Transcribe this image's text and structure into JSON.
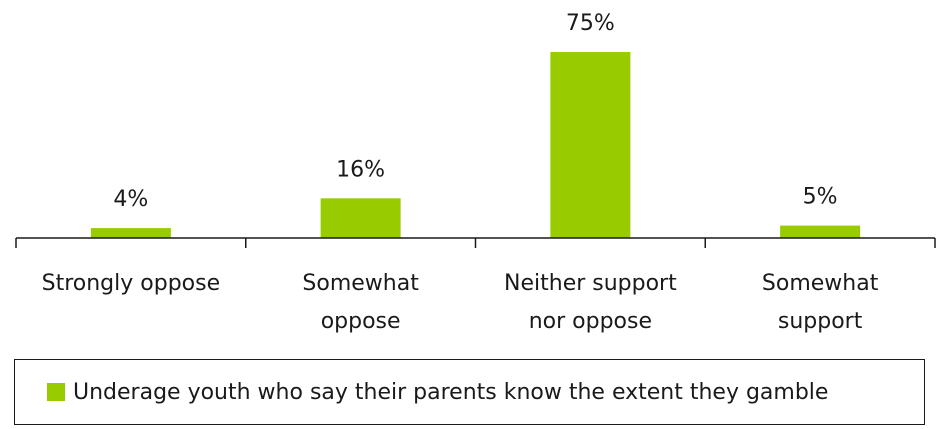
{
  "chart_data": {
    "type": "bar",
    "categories": [
      [
        "Strongly oppose"
      ],
      [
        "Somewhat",
        "oppose"
      ],
      [
        "Neither support",
        "nor oppose"
      ],
      [
        "Somewhat",
        "support"
      ]
    ],
    "series": [
      {
        "name": "Underage youth who say their parents know the extent they gamble",
        "values": [
          4,
          16,
          75,
          5
        ],
        "labels": [
          "4%",
          "16%",
          "75%",
          "5%"
        ],
        "color": "#99cc00"
      }
    ],
    "ylim": [
      0,
      100
    ],
    "grid": false,
    "legend_position": "bottom"
  }
}
